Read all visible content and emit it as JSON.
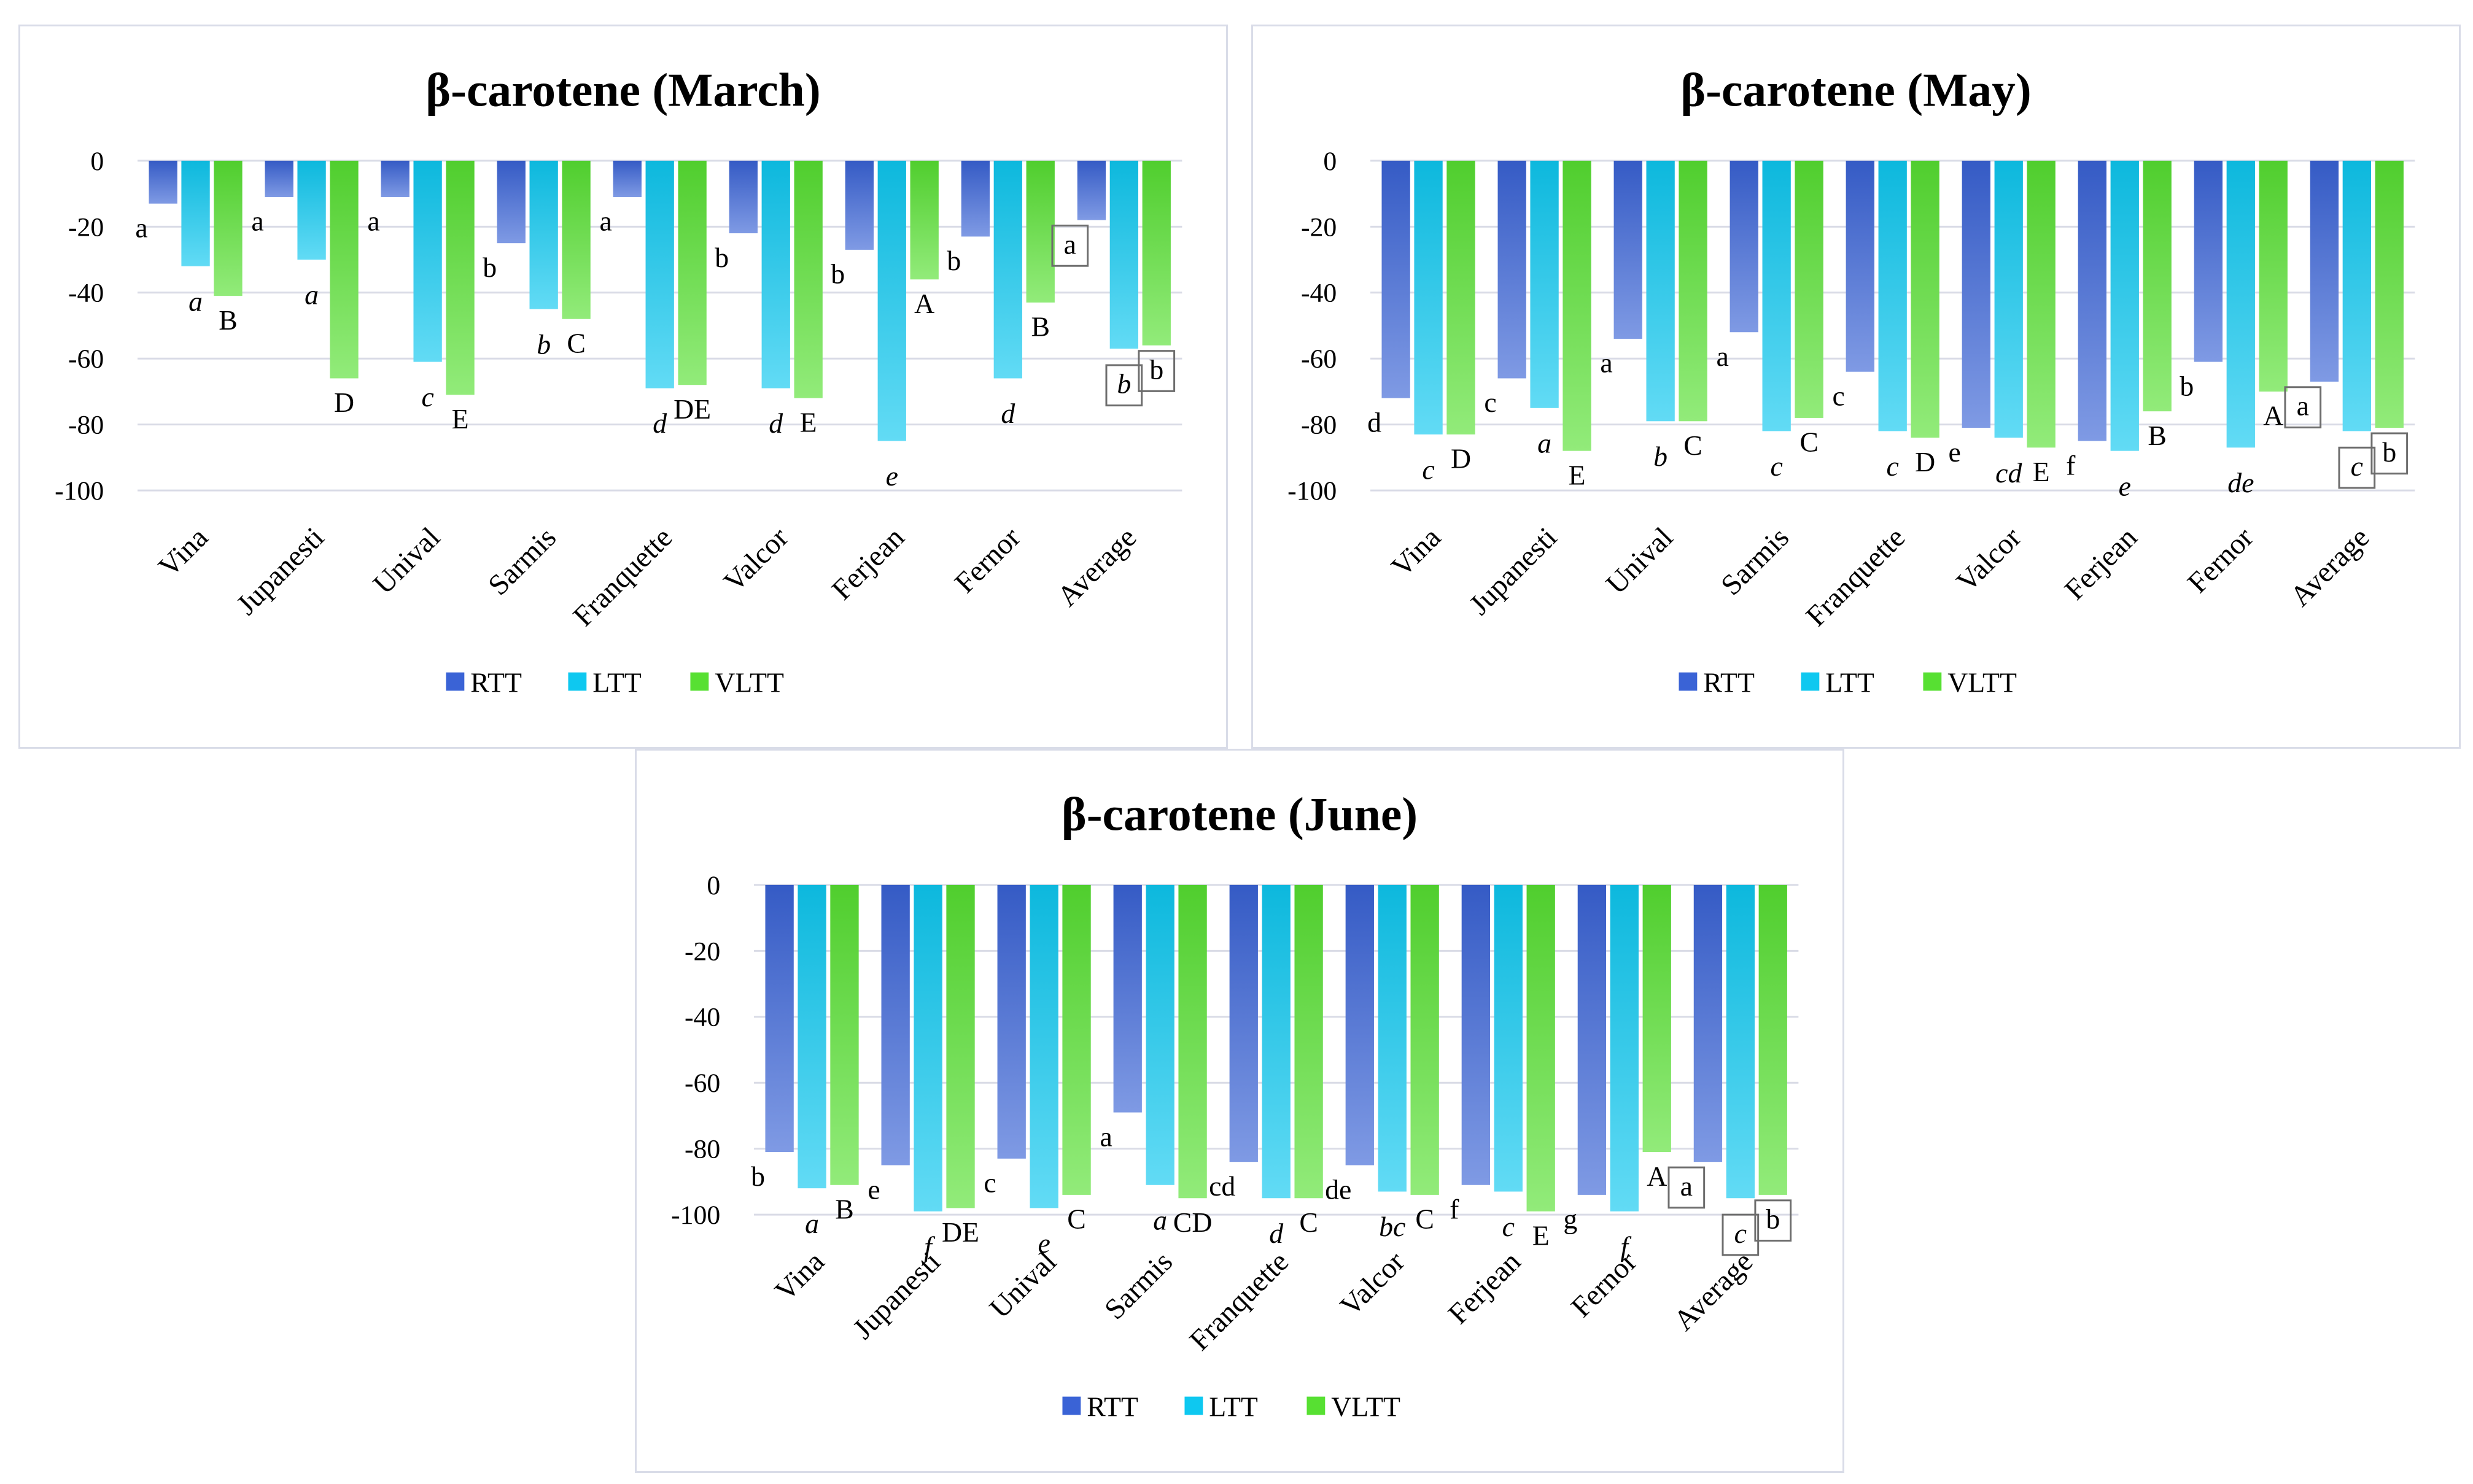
{
  "colors": {
    "RTT": "#3a63d6",
    "LTT": "#0ec8f0",
    "VLTT": "#57e032"
  },
  "chart_data": [
    {
      "type": "bar",
      "title": "β-carotene (March)",
      "categories": [
        "Vina",
        "Jupanesti",
        "Unival",
        "Sarmis",
        "Franquette",
        "Valcor",
        "Ferjean",
        "Fernor",
        "Average"
      ],
      "ylim": [
        -100,
        0
      ],
      "yticks": [
        0,
        -20,
        -40,
        -60,
        -80,
        -100
      ],
      "legend": "bottom",
      "series": [
        {
          "name": "RTT",
          "values": [
            -13,
            -11,
            -11,
            -25,
            -11,
            -22,
            -27,
            -23,
            -18
          ],
          "labels": [
            "a",
            "a",
            "a",
            "b",
            "a",
            "b",
            "b",
            "b",
            "a"
          ]
        },
        {
          "name": "LTT",
          "values": [
            -32,
            -30,
            -61,
            -45,
            -69,
            -69,
            -85,
            -66,
            -57
          ],
          "labels": [
            "a",
            "a",
            "c",
            "b",
            "d",
            "d",
            "e",
            "d",
            "b"
          ]
        },
        {
          "name": "VLTT",
          "values": [
            -41,
            -66,
            -71,
            -48,
            -68,
            -72,
            -36,
            -43,
            -56
          ],
          "labels": [
            "B",
            "D",
            "E",
            "C",
            "DE",
            "E",
            "A",
            "B",
            "b"
          ]
        }
      ]
    },
    {
      "type": "bar",
      "title": "β-carotene (May)",
      "categories": [
        "Vina",
        "Jupanesti",
        "Unival",
        "Sarmis",
        "Franquette",
        "Valcor",
        "Ferjean",
        "Fernor",
        "Average"
      ],
      "ylim": [
        -100,
        0
      ],
      "yticks": [
        0,
        -20,
        -40,
        -60,
        -80,
        -100
      ],
      "legend": "bottom",
      "series": [
        {
          "name": "RTT",
          "values": [
            -72,
            -66,
            -54,
            -52,
            -64,
            -81,
            -85,
            -61,
            -67
          ],
          "labels": [
            "d",
            "c",
            "a",
            "a",
            "c",
            "e",
            "f",
            "b",
            "a"
          ]
        },
        {
          "name": "LTT",
          "values": [
            -83,
            -75,
            -79,
            -82,
            -82,
            -84,
            -88,
            -87,
            -82
          ],
          "labels": [
            "c",
            "a",
            "b",
            "c",
            "c",
            "cd",
            "e",
            "de",
            "c"
          ]
        },
        {
          "name": "VLTT",
          "values": [
            -83,
            -88,
            -79,
            -78,
            -84,
            -87,
            -76,
            -70,
            -81
          ],
          "labels": [
            "D",
            "E",
            "C",
            "C",
            "D",
            "E",
            "B",
            "A",
            "b"
          ]
        }
      ]
    },
    {
      "type": "bar",
      "title": "β-carotene (June)",
      "categories": [
        "Vina",
        "Jupanesti",
        "Unival",
        "Sarmis",
        "Franquette",
        "Valcor",
        "Ferjean",
        "Fernor",
        "Average"
      ],
      "ylim": [
        -100,
        0
      ],
      "yticks": [
        0,
        -20,
        -40,
        -60,
        -80,
        -100
      ],
      "legend": "bottom",
      "series": [
        {
          "name": "RTT",
          "values": [
            -81,
            -85,
            -83,
            -69,
            -84,
            -85,
            -91,
            -94,
            -84
          ],
          "labels": [
            "b",
            "e",
            "c",
            "a",
            "cd",
            "de",
            "f",
            "g",
            "a"
          ]
        },
        {
          "name": "LTT",
          "values": [
            -92,
            -99,
            -98,
            -91,
            -95,
            -93,
            -93,
            -99,
            -95
          ],
          "labels": [
            "a",
            "f",
            "e",
            "a",
            "d",
            "bc",
            "c",
            "f",
            "c"
          ]
        },
        {
          "name": "VLTT",
          "values": [
            -91,
            -98,
            -94,
            -95,
            -95,
            -94,
            -99,
            -81,
            -94
          ],
          "labels": [
            "B",
            "DE",
            "C",
            "CD",
            "C",
            "C",
            "E",
            "A",
            "b"
          ]
        }
      ]
    }
  ]
}
